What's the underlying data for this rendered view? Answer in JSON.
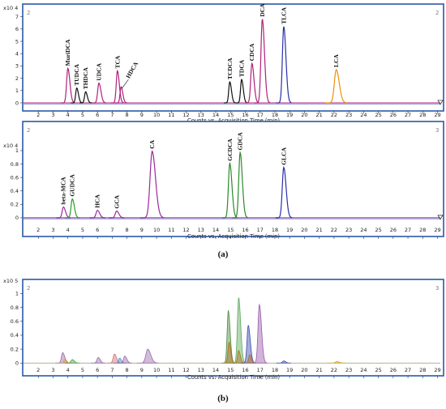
{
  "panel_captions": [
    "(a)",
    "(b)"
  ],
  "chart_data": [
    {
      "type": "line",
      "corner_labels": [
        "2",
        "2"
      ],
      "multiplier": "x10 4",
      "xlabel": "Counts vs. Acquisition Time (min)",
      "xlim": [
        1,
        29.3
      ],
      "xticks": [
        2,
        3,
        4,
        5,
        6,
        7,
        8,
        9,
        10,
        11,
        12,
        13,
        14,
        15,
        16,
        17,
        18,
        19,
        20,
        21,
        22,
        23,
        24,
        25,
        26,
        27,
        28,
        29
      ],
      "ylim": [
        -0.2,
        7.7
      ],
      "yticks": [
        0,
        1,
        2,
        3,
        4,
        5,
        6,
        7
      ],
      "peaks": [
        {
          "label": "MuriDCA",
          "x": 4.0,
          "y": 2.8,
          "w": 0.12,
          "color": "#b0207a"
        },
        {
          "label": "TUDCA",
          "x": 4.6,
          "y": 1.2,
          "w": 0.1,
          "color": "#111111"
        },
        {
          "label": "THDCA",
          "x": 5.2,
          "y": 0.9,
          "w": 0.1,
          "color": "#111111"
        },
        {
          "label": "UDCA",
          "x": 6.1,
          "y": 1.6,
          "w": 0.12,
          "color": "#b0207a"
        },
        {
          "label": "TCA",
          "x": 7.35,
          "y": 2.6,
          "w": 0.11,
          "color": "#b0207a"
        },
        {
          "label": "HDCA",
          "x": 7.6,
          "y": 1.3,
          "w": 0.1,
          "color": "#b0207a"
        },
        {
          "label": "TCDCA",
          "x": 14.95,
          "y": 1.7,
          "w": 0.1,
          "color": "#111111"
        },
        {
          "label": "TDCA",
          "x": 15.75,
          "y": 1.9,
          "w": 0.1,
          "color": "#111111"
        },
        {
          "label": "CDCA",
          "x": 16.45,
          "y": 3.2,
          "w": 0.12,
          "color": "#b0207a"
        },
        {
          "label": "DCA",
          "x": 17.15,
          "y": 6.8,
          "w": 0.13,
          "color": "#b0207a"
        },
        {
          "label": "TLCA",
          "x": 18.6,
          "y": 6.2,
          "w": 0.13,
          "color": "#2a30a8"
        },
        {
          "label": "LCA",
          "x": 22.15,
          "y": 2.7,
          "w": 0.18,
          "color": "#f0900a"
        }
      ]
    },
    {
      "type": "line",
      "corner_labels": [
        "2",
        "3"
      ],
      "multiplier": "x10 4",
      "xlabel": "Counts vs. Acquisition Time (min)",
      "xlim": [
        1,
        29.3
      ],
      "xticks": [
        2,
        3,
        4,
        5,
        6,
        7,
        8,
        9,
        10,
        11,
        12,
        13,
        14,
        15,
        16,
        17,
        18,
        19,
        20,
        21,
        22,
        23,
        24,
        25,
        26,
        27,
        28,
        29
      ],
      "ylim": [
        -0.05,
        1.12
      ],
      "yticks": [
        0,
        0.2,
        0.4,
        0.6,
        0.8,
        1
      ],
      "peaks": [
        {
          "label": "beta-MCA",
          "x": 3.7,
          "y": 0.16,
          "w": 0.12,
          "color": "#9a2a9a"
        },
        {
          "label": "GUDCA",
          "x": 4.3,
          "y": 0.28,
          "w": 0.12,
          "color": "#2a9a2a"
        },
        {
          "label": "HCA",
          "x": 6.0,
          "y": 0.11,
          "w": 0.13,
          "color": "#9a2a9a"
        },
        {
          "label": "GCA",
          "x": 7.3,
          "y": 0.1,
          "w": 0.13,
          "color": "#9a2a9a"
        },
        {
          "label": "CA",
          "x": 9.7,
          "y": 0.99,
          "w": 0.2,
          "color": "#9a2a9a"
        },
        {
          "label": "GCDCA",
          "x": 14.95,
          "y": 0.81,
          "w": 0.13,
          "color": "#2a8a2a"
        },
        {
          "label": "GDCA",
          "x": 15.65,
          "y": 0.97,
          "w": 0.13,
          "color": "#2a8a2a"
        },
        {
          "label": "GLCA",
          "x": 18.6,
          "y": 0.75,
          "w": 0.14,
          "color": "#2a30a8"
        }
      ]
    },
    {
      "type": "area",
      "corner_labels": [
        "2",
        "3"
      ],
      "multiplier": "x10 5",
      "xlabel": "Counts vs. Acquisition Time (min)",
      "xlim": [
        1,
        29.3
      ],
      "xticks": [
        2,
        3,
        4,
        5,
        6,
        7,
        8,
        9,
        10,
        11,
        12,
        13,
        14,
        15,
        16,
        17,
        18,
        19,
        20,
        21,
        22,
        23,
        24,
        25,
        26,
        27,
        28,
        29
      ],
      "ylim": [
        -0.02,
        1.12
      ],
      "yticks": [
        0,
        0.2,
        0.4,
        0.6,
        0.8,
        1
      ],
      "peaks": [
        {
          "x": 3.65,
          "y": 0.15,
          "w": 0.12,
          "color": "#9a6aaa"
        },
        {
          "x": 3.8,
          "y": 0.06,
          "w": 0.1,
          "color": "#d4a04a"
        },
        {
          "x": 4.3,
          "y": 0.05,
          "w": 0.12,
          "color": "#4aa04a"
        },
        {
          "x": 6.05,
          "y": 0.08,
          "w": 0.12,
          "color": "#9a6aaa"
        },
        {
          "x": 7.15,
          "y": 0.13,
          "w": 0.12,
          "color": "#d07070"
        },
        {
          "x": 7.5,
          "y": 0.07,
          "w": 0.1,
          "color": "#4a8aca"
        },
        {
          "x": 7.85,
          "y": 0.1,
          "w": 0.12,
          "color": "#9a6aaa"
        },
        {
          "x": 9.4,
          "y": 0.2,
          "w": 0.18,
          "color": "#9a6aaa"
        },
        {
          "x": 14.85,
          "y": 0.75,
          "w": 0.11,
          "color": "#4a8a3a"
        },
        {
          "x": 14.9,
          "y": 0.3,
          "w": 0.1,
          "color": "#b07020"
        },
        {
          "x": 15.55,
          "y": 0.94,
          "w": 0.12,
          "color": "#5aa85a"
        },
        {
          "x": 15.55,
          "y": 0.18,
          "w": 0.1,
          "color": "#b07020"
        },
        {
          "x": 16.2,
          "y": 0.54,
          "w": 0.12,
          "color": "#3a4ab0"
        },
        {
          "x": 16.3,
          "y": 0.12,
          "w": 0.1,
          "color": "#b07020"
        },
        {
          "x": 16.95,
          "y": 0.84,
          "w": 0.13,
          "color": "#9a5aaa"
        },
        {
          "x": 18.6,
          "y": 0.03,
          "w": 0.12,
          "color": "#3a4ab0"
        },
        {
          "x": 22.2,
          "y": 0.02,
          "w": 0.15,
          "color": "#d0a020"
        }
      ]
    }
  ]
}
